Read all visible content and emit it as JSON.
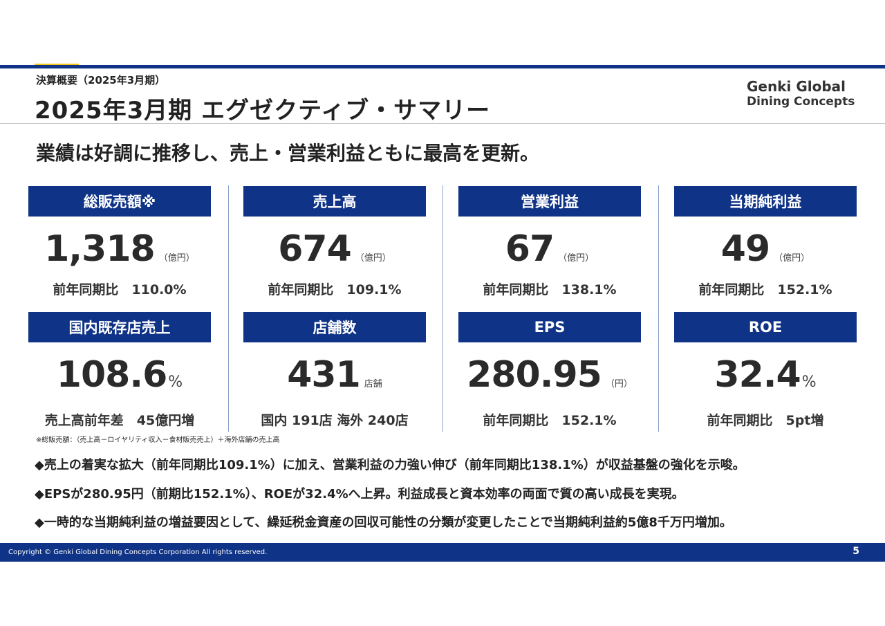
{
  "header": {
    "subtitle": "決算概要（2025年3月期）",
    "title": "2025年3月期 エグゼクティブ・サマリー",
    "logo_line1": "Genki Global",
    "logo_line2": "Dining Concepts"
  },
  "headline": "業績は好調に推移し、売上・営業利益ともに最高を更新。",
  "cards": [
    {
      "title": "総販売額※",
      "value": "1,318",
      "unit": "（億円）",
      "sub": "前年同期比　110.0%"
    },
    {
      "title": "売上高",
      "value": "674",
      "unit": "（億円）",
      "sub": "前年同期比　109.1%"
    },
    {
      "title": "営業利益",
      "value": "67",
      "unit": "（億円）",
      "sub": "前年同期比　138.1%"
    },
    {
      "title": "当期純利益",
      "value": "49",
      "unit": "（億円）",
      "sub": "前年同期比　152.1%"
    },
    {
      "title": "国内既存店売上",
      "value": "108.6",
      "unit": "%",
      "sub": "売上高前年差　45億円増"
    },
    {
      "title": "店舗数",
      "value": "431",
      "unit": "店舗",
      "sub": "国内 191店 海外 240店"
    },
    {
      "title": "EPS",
      "value": "280.95",
      "unit": "（円）",
      "sub": "前年同期比　152.1%"
    },
    {
      "title": "ROE",
      "value": "32.4",
      "unit": "%",
      "sub": "前年同期比　5pt増"
    }
  ],
  "footnote": "※総販売額：（売上高－ロイヤリティ収入－食材販売売上）＋海外店舗の売上高",
  "bullets": [
    "◆売上の着実な拡大（前年同期比109.1%）に加え、営業利益の力強い伸び（前年同期比138.1%）が収益基盤の強化を示唆。",
    "◆EPSが280.95円（前期比152.1%）、ROEが32.4%へ上昇。利益成長と資本効率の両面で質の高い成長を実現。",
    "◆一時的な当期純利益の増益要因として、繰延税金資産の回収可能性の分類が変更したことで当期純利益約5億8千万円増加。"
  ],
  "footer": {
    "copyright": "Copyright © Genki Global Dining Concepts Corporation All rights reserved.",
    "page_number": "5"
  },
  "colors": {
    "navy": "#0f3386",
    "accent": "#f0c419"
  }
}
